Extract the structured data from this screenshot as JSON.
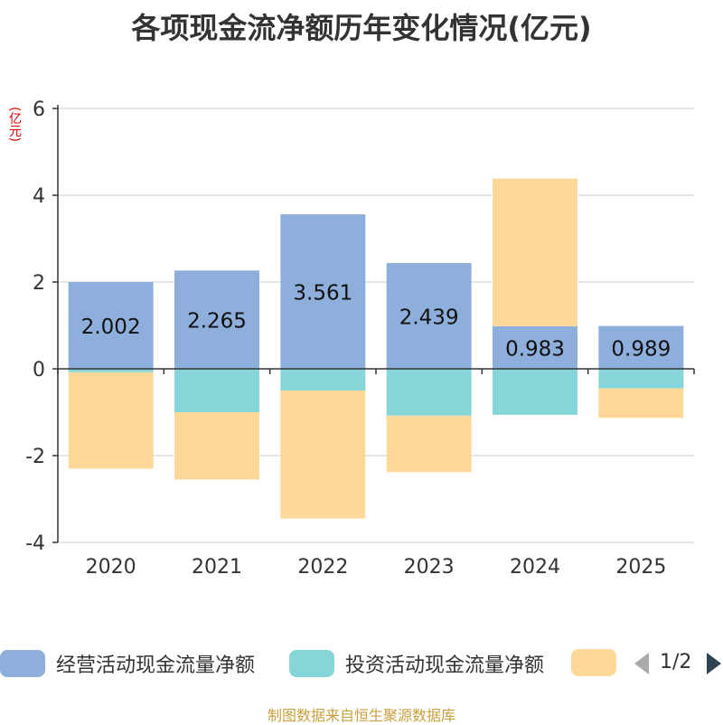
{
  "title": "各项现金流净额历年变化情况(亿元)",
  "unit_label": "(亿元)",
  "chart_data": {
    "type": "bar",
    "stacked": true,
    "categories": [
      "2020",
      "2021",
      "2022",
      "2023",
      "2024",
      "2025"
    ],
    "series": [
      {
        "name": "经营活动现金流量净额",
        "color": "#8eaedb",
        "values": [
          2.002,
          2.265,
          3.561,
          2.439,
          0.983,
          0.989
        ],
        "labels": [
          "2.002",
          "2.265",
          "3.561",
          "2.439",
          "0.983",
          "0.989"
        ]
      },
      {
        "name": "投资活动现金流量净额",
        "color": "#86d5d8",
        "values": [
          -0.08,
          -1.0,
          -0.5,
          -1.08,
          -1.06,
          -0.45
        ]
      },
      {
        "name": "",
        "color": "#fed898",
        "values": [
          -2.22,
          -1.55,
          -2.95,
          -1.3,
          3.4,
          -0.68
        ]
      }
    ],
    "ylim": [
      -4,
      6
    ],
    "yticks": [
      "-4",
      "-2",
      "0",
      "2",
      "4",
      "6"
    ]
  },
  "legend": {
    "items": [
      {
        "label": "经营活动现金流量净额",
        "color": "#8eaedb"
      },
      {
        "label": "投资活动现金流量净额",
        "color": "#86d5d8"
      },
      {
        "label": "",
        "color": "#fed898"
      }
    ],
    "page": "1/2"
  },
  "footer": "制图数据来自恒生聚源数据库"
}
